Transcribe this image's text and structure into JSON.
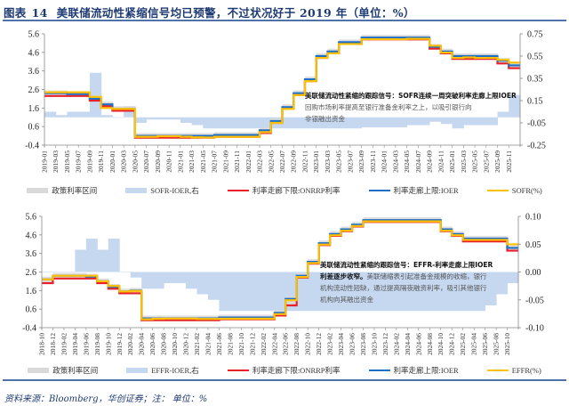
{
  "header": {
    "label": "图表",
    "number": "14",
    "text": "美联储流动性紧缩信号均已预警，不过状况好于 2019 年（单位：%）"
  },
  "top_chart": {
    "annotation_bold": "美联储流动性紧缩的跟踪信号：SOFR连续一周突破利率走廊上限IOER",
    "annotation_text_1": "回购市场利率提高至银行准备金利率之上，以吸引银行向",
    "annotation_text_2": "非银融出资金",
    "legend": [
      {
        "label": "政策利率区间",
        "color": "#d9d9d9",
        "kind": "box"
      },
      {
        "label": "SOFR-IOER,右",
        "color": "#c5d8f0",
        "kind": "box"
      },
      {
        "label": "利率走廊下限:ONRRP利率",
        "color": "#e8202a",
        "kind": "line"
      },
      {
        "label": "利率走廊上限:IOER",
        "color": "#1f6fc5",
        "kind": "line"
      },
      {
        "label": "SOFR(%)",
        "color": "#ffc000",
        "kind": "line"
      }
    ]
  },
  "bottom_chart": {
    "annotation_bold": "美联储流动性紧缩的跟踪信号：EFFR-利率走廊上限IOER利差逐步收窄。",
    "annotation_text": "美联储缩表引起准备金规模的收缩，银行机构流动性短缺，通过提高隔夜融资利率，吸引其他银行机构向其融出资金",
    "annotation_line1_bold": "美联储流动性紧缩的跟踪信号：EFFR-利率走廊上限IOER",
    "annotation_line2_bold": "利差逐步收窄。",
    "annotation_line2_rest": "美联储缩表引起准备金规模的收缩，银行",
    "annotation_line3": "机构流动性短缺，通过提高隔夜融资利率，吸引其他银行",
    "annotation_line4": "机构向其融出资金",
    "legend": [
      {
        "label": "政策利率区间",
        "color": "#d9d9d9",
        "kind": "box"
      },
      {
        "label": "EFFR-IOER,右",
        "color": "#c5d8f0",
        "kind": "box"
      },
      {
        "label": "利率走廊下限:ONRRP利率",
        "color": "#e8202a",
        "kind": "line"
      },
      {
        "label": "利率走廊上限:IOER",
        "color": "#1f6fc5",
        "kind": "line"
      },
      {
        "label": "EFFR(%)",
        "color": "#ffc000",
        "kind": "line"
      }
    ]
  },
  "footer": {
    "source": "资料来源：Bloomberg，华创证券；注：  单位：%"
  },
  "chart_data": [
    {
      "type": "line",
      "title": "SOFR vs rate corridor",
      "xlabel": "",
      "ylabel": "%",
      "ylim": [
        -0.4,
        5.6
      ],
      "y2lim": [
        -0.25,
        0.75
      ],
      "yticks": [
        -0.4,
        0.6,
        1.6,
        2.6,
        3.6,
        4.6,
        5.6
      ],
      "y2ticks": [
        -0.25,
        -0.05,
        0.15,
        0.35,
        0.55,
        0.75
      ],
      "categories": [
        "2019-01",
        "2019-03",
        "2019-05",
        "2019-07",
        "2019-09",
        "2019-11",
        "2020-01",
        "2020-03",
        "2020-05",
        "2020-07",
        "2020-09",
        "2020-11",
        "2021-01",
        "2021-03",
        "2021-05",
        "2021-07",
        "2021-09",
        "2021-11",
        "2022-01",
        "2022-03",
        "2022-05",
        "2022-07",
        "2022-09",
        "2022-11",
        "2023-01",
        "2023-03",
        "2023-05",
        "2023-07",
        "2023-09",
        "2023-11",
        "2024-01",
        "2024-03",
        "2024-05",
        "2024-07",
        "2024-09",
        "2024-11",
        "2025-01",
        "2025-03",
        "2025-05",
        "2025-07",
        "2025-09",
        "2025-11"
      ],
      "legend_position": "bottom",
      "series": [
        {
          "name": "利率走廊上限:IOER",
          "values": [
            2.4,
            2.4,
            2.35,
            2.35,
            2.1,
            1.8,
            1.55,
            1.55,
            0.1,
            0.1,
            0.1,
            0.1,
            0.1,
            0.1,
            0.1,
            0.15,
            0.15,
            0.15,
            0.15,
            0.4,
            0.9,
            1.65,
            2.4,
            3.15,
            4.4,
            4.65,
            5.15,
            5.15,
            5.4,
            5.4,
            5.4,
            5.4,
            5.4,
            5.4,
            4.9,
            4.65,
            4.4,
            4.4,
            4.4,
            4.4,
            4.15,
            3.9
          ]
        },
        {
          "name": "利率走廊下限:ONRRP利率",
          "values": [
            2.25,
            2.25,
            2.25,
            2.25,
            2.0,
            1.7,
            1.45,
            1.45,
            0.0,
            0.0,
            0.0,
            0.0,
            0.0,
            0.0,
            0.0,
            0.05,
            0.05,
            0.05,
            0.05,
            0.25,
            0.8,
            1.55,
            2.3,
            3.05,
            4.3,
            4.55,
            5.05,
            5.05,
            5.3,
            5.3,
            5.3,
            5.3,
            5.3,
            5.3,
            4.8,
            4.55,
            4.25,
            4.25,
            4.25,
            4.25,
            4.0,
            3.75
          ]
        },
        {
          "name": "SOFR(%)",
          "values": [
            2.45,
            2.45,
            2.45,
            2.45,
            2.2,
            1.6,
            1.55,
            1.55,
            0.05,
            0.05,
            0.08,
            0.08,
            0.05,
            0.02,
            0.01,
            0.05,
            0.05,
            0.05,
            0.05,
            0.3,
            0.8,
            1.55,
            2.3,
            3.05,
            4.3,
            4.55,
            5.05,
            5.05,
            5.31,
            5.31,
            5.31,
            5.31,
            5.33,
            5.33,
            4.96,
            4.59,
            4.3,
            4.33,
            4.3,
            4.3,
            4.2,
            4.05
          ]
        },
        {
          "name": "SOFR-IOER,右",
          "values": [
            0.05,
            0.02,
            0.05,
            0.05,
            0.4,
            0.02,
            0.0,
            0.1,
            -0.05,
            -0.02,
            -0.02,
            -0.02,
            -0.05,
            -0.07,
            -0.1,
            -0.1,
            -0.1,
            -0.1,
            -0.1,
            -0.1,
            -0.1,
            -0.1,
            -0.1,
            -0.1,
            -0.1,
            -0.1,
            -0.1,
            -0.1,
            -0.09,
            -0.09,
            -0.09,
            -0.09,
            -0.07,
            -0.07,
            -0.04,
            -0.06,
            -0.1,
            -0.07,
            -0.07,
            -0.07,
            0.05,
            0.2
          ]
        }
      ]
    },
    {
      "type": "line",
      "title": "EFFR vs rate corridor",
      "xlabel": "",
      "ylabel": "%",
      "ylim": [
        -0.4,
        5.6
      ],
      "y2lim": [
        -0.1,
        0.1
      ],
      "yticks": [
        -0.4,
        0.6,
        1.6,
        2.6,
        3.6,
        4.6,
        5.6
      ],
      "y2ticks": [
        -0.1,
        -0.05,
        0.0,
        0.05,
        0.1
      ],
      "categories": [
        "2018-10",
        "2018-12",
        "2019-02",
        "2019-04",
        "2019-06",
        "2019-08",
        "2019-10",
        "2019-12",
        "2020-02",
        "2020-04",
        "2020-06",
        "2020-08",
        "2020-10",
        "2020-12",
        "2021-02",
        "2021-04",
        "2021-06",
        "2021-08",
        "2021-10",
        "2021-12",
        "2022-02",
        "2022-04",
        "2022-06",
        "2022-08",
        "2022-10",
        "2022-12",
        "2023-02",
        "2023-04",
        "2023-06",
        "2023-08",
        "2023-10",
        "2023-12",
        "2024-02",
        "2024-04",
        "2024-06",
        "2024-08",
        "2024-10",
        "2024-12",
        "2025-02",
        "2025-04",
        "2025-06",
        "2025-08",
        "2025-10"
      ],
      "legend_position": "bottom",
      "series": [
        {
          "name": "利率走廊上限:IOER",
          "values": [
            2.2,
            2.4,
            2.4,
            2.4,
            2.35,
            2.1,
            1.8,
            1.55,
            1.6,
            0.1,
            0.1,
            0.1,
            0.1,
            0.1,
            0.1,
            0.1,
            0.15,
            0.15,
            0.15,
            0.15,
            0.15,
            0.4,
            1.15,
            2.4,
            3.15,
            4.15,
            4.65,
            4.9,
            5.15,
            5.4,
            5.4,
            5.4,
            5.4,
            5.4,
            5.4,
            5.4,
            4.9,
            4.65,
            4.4,
            4.4,
            4.4,
            4.4,
            3.9
          ]
        },
        {
          "name": "利率走廊下限:ONRRP利率",
          "values": [
            2.0,
            2.25,
            2.25,
            2.25,
            2.25,
            2.0,
            1.7,
            1.45,
            1.45,
            0.0,
            0.0,
            0.0,
            0.0,
            0.0,
            0.0,
            0.0,
            0.05,
            0.05,
            0.05,
            0.05,
            0.05,
            0.25,
            0.8,
            2.3,
            3.05,
            4.05,
            4.55,
            4.8,
            5.05,
            5.3,
            5.3,
            5.3,
            5.3,
            5.3,
            5.3,
            5.3,
            4.8,
            4.55,
            4.25,
            4.25,
            4.25,
            4.25,
            3.75
          ]
        },
        {
          "name": "EFFR(%)",
          "values": [
            2.2,
            2.4,
            2.4,
            2.4,
            2.4,
            2.1,
            1.85,
            1.55,
            1.58,
            0.05,
            0.08,
            0.09,
            0.09,
            0.09,
            0.07,
            0.07,
            0.08,
            0.08,
            0.08,
            0.08,
            0.08,
            0.33,
            1.08,
            2.33,
            3.08,
            4.08,
            4.58,
            4.83,
            5.08,
            5.33,
            5.33,
            5.33,
            5.33,
            5.33,
            5.33,
            5.33,
            4.83,
            4.58,
            4.33,
            4.33,
            4.33,
            4.33,
            4.09
          ]
        },
        {
          "name": "EFFR-IOER,右",
          "values": [
            0.0,
            0.0,
            0.0,
            0.04,
            0.06,
            0.04,
            0.06,
            0.0,
            -0.01,
            -0.03,
            -0.03,
            -0.02,
            -0.02,
            -0.03,
            -0.04,
            -0.05,
            -0.07,
            -0.07,
            -0.07,
            -0.07,
            -0.07,
            -0.07,
            -0.07,
            -0.07,
            -0.07,
            -0.07,
            -0.07,
            -0.07,
            -0.07,
            -0.07,
            -0.07,
            -0.07,
            -0.07,
            -0.07,
            -0.07,
            -0.07,
            -0.07,
            -0.07,
            -0.07,
            -0.07,
            -0.06,
            -0.04,
            -0.02
          ]
        }
      ]
    }
  ]
}
